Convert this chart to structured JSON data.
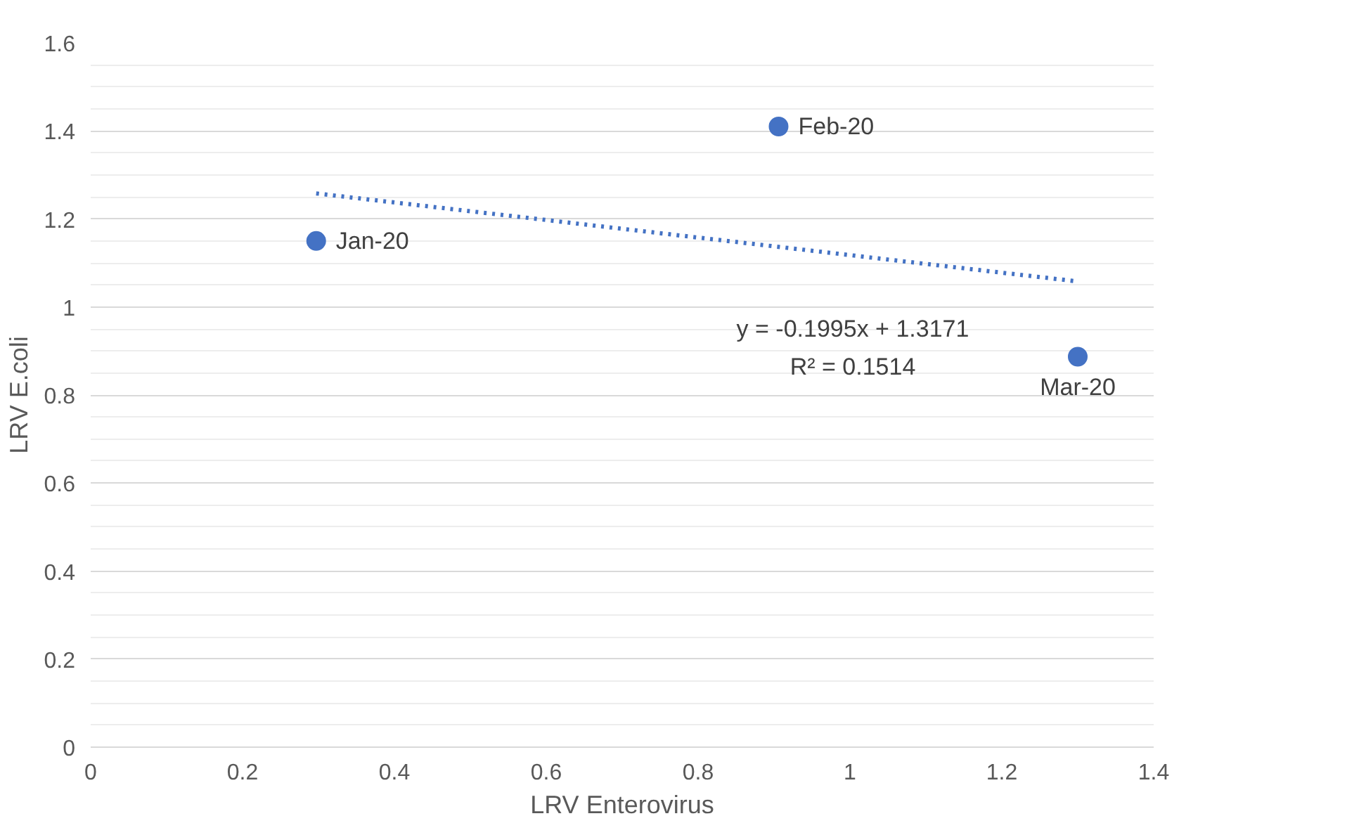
{
  "chart_data": {
    "type": "scatter",
    "xlabel": "LRV Enterovirus",
    "ylabel": "LRV E.coli",
    "xlim": [
      0,
      1.4
    ],
    "ylim": [
      0,
      1.6
    ],
    "xticks": [
      0,
      0.2,
      0.4,
      0.6,
      0.8,
      1,
      1.2,
      1.4
    ],
    "yticks": [
      0,
      0.2,
      0.4,
      0.6,
      0.8,
      1,
      1.2,
      1.4,
      1.6
    ],
    "grid": "y",
    "marker": "circle",
    "series": [
      {
        "color": "#4472c4",
        "x": [
          0.297,
          0.906,
          1.3
        ],
        "values": [
          1.15,
          1.41,
          0.887
        ]
      },
      {
        "type": "line",
        "color": "#4472c4",
        "line_style": "dotted",
        "marker": "none",
        "x": [
          0.297,
          1.3
        ],
        "values": [
          1.258,
          1.058
        ]
      }
    ],
    "annotations": [
      {
        "text": "Jan-20",
        "x": 0.297,
        "y": 1.15
      },
      {
        "text": "Feb-20",
        "x": 0.906,
        "y": 1.41
      },
      {
        "text": "Mar-20",
        "x": 1.3,
        "y": 0.887
      },
      "y = -0.1995x + 1.3171",
      "R² = 0.1514"
    ]
  }
}
